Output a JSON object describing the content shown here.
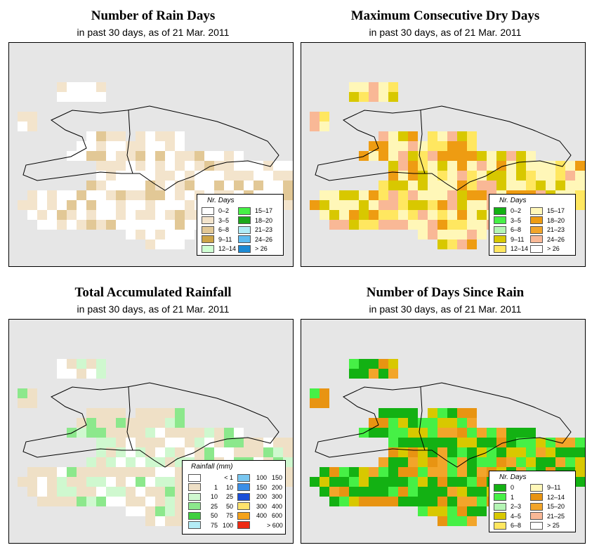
{
  "panels": [
    {
      "id": "rain-days",
      "title": "Number of Rain Days",
      "subtitle": "in past 30 days, as of  21 Mar. 2011",
      "legend": {
        "title": "Nr. Days",
        "items": [
          {
            "label": "0–2",
            "color": "#ffffff"
          },
          {
            "label": "3–5",
            "color": "#f3e4cc"
          },
          {
            "label": "6–8",
            "color": "#e2c896"
          },
          {
            "label": "9–11",
            "color": "#cda447"
          },
          {
            "label": "12–14",
            "color": "#cfffd2"
          },
          {
            "label": "15–17",
            "color": "#46f046"
          },
          {
            "label": "18–20",
            "color": "#1aa81a"
          },
          {
            "label": "21–23",
            "color": "#b0ecf7"
          },
          {
            "label": "24–26",
            "color": "#5dbbf0"
          },
          {
            "label": "> 26",
            "color": "#1c8ad4"
          }
        ]
      }
    },
    {
      "id": "dry-days",
      "title": "Maximum Consecutive Dry Days",
      "subtitle": "in past 30 days, as of  21 Mar. 2011",
      "legend": {
        "title": "Nr. Days",
        "items": [
          {
            "label": "0–2",
            "color": "#13b113"
          },
          {
            "label": "3–5",
            "color": "#46f046"
          },
          {
            "label": "6–8",
            "color": "#b4f5b4"
          },
          {
            "label": "9–11",
            "color": "#d8c800"
          },
          {
            "label": "12–14",
            "color": "#ffe760"
          },
          {
            "label": "15–17",
            "color": "#fff7b8"
          },
          {
            "label": "18–20",
            "color": "#ee9c12"
          },
          {
            "label": "21–23",
            "color": "#f2a52a"
          },
          {
            "label": "24–26",
            "color": "#f9b896"
          },
          {
            "label": "> 26",
            "color": "#ffffff"
          }
        ]
      }
    },
    {
      "id": "rainfall",
      "title": "Total Accumulated Rainfall",
      "subtitle": "in past 30 days, as of  21 Mar. 2011",
      "legend": {
        "title": "Rainfall (mm)",
        "items": [
          {
            "lo": "",
            "hi": "< 1",
            "color": "#ffffff"
          },
          {
            "lo": "1",
            "hi": "10",
            "color": "#efe0c6"
          },
          {
            "lo": "10",
            "hi": "25",
            "color": "#cff8cf"
          },
          {
            "lo": "25",
            "hi": "50",
            "color": "#8ce88c"
          },
          {
            "lo": "50",
            "hi": "75",
            "color": "#3fcf3f"
          },
          {
            "lo": "75",
            "hi": "100",
            "color": "#b4ecf6"
          },
          {
            "lo": "100",
            "hi": "150",
            "color": "#78c6f0"
          },
          {
            "lo": "150",
            "hi": "200",
            "color": "#3a8ee6"
          },
          {
            "lo": "200",
            "hi": "300",
            "color": "#1a4fd8"
          },
          {
            "lo": "300",
            "hi": "400",
            "color": "#ffe36b"
          },
          {
            "lo": "400",
            "hi": "600",
            "color": "#f5a21a"
          },
          {
            "lo": "",
            "hi": "> 600",
            "color": "#ee2a12"
          }
        ]
      }
    },
    {
      "id": "days-since-rain",
      "title": "Number of Days Since Rain",
      "subtitle": "in past 30 days, as of  21 Mar. 2011",
      "legend": {
        "title": "Nr. Days",
        "items": [
          {
            "label": "0",
            "color": "#13b113"
          },
          {
            "label": "1",
            "color": "#46f046"
          },
          {
            "label": "2–3",
            "color": "#b4f5b4"
          },
          {
            "label": "4–5",
            "color": "#d8c800"
          },
          {
            "label": "6–8",
            "color": "#ffe760"
          },
          {
            "label": "9–11",
            "color": "#fff7b8"
          },
          {
            "label": "12–14",
            "color": "#e89412"
          },
          {
            "label": "15–20",
            "color": "#f2a52a"
          },
          {
            "label": "21–25",
            "color": "#f9b896"
          },
          {
            "label": "> 25",
            "color": "#ffffff"
          }
        ]
      }
    }
  ]
}
